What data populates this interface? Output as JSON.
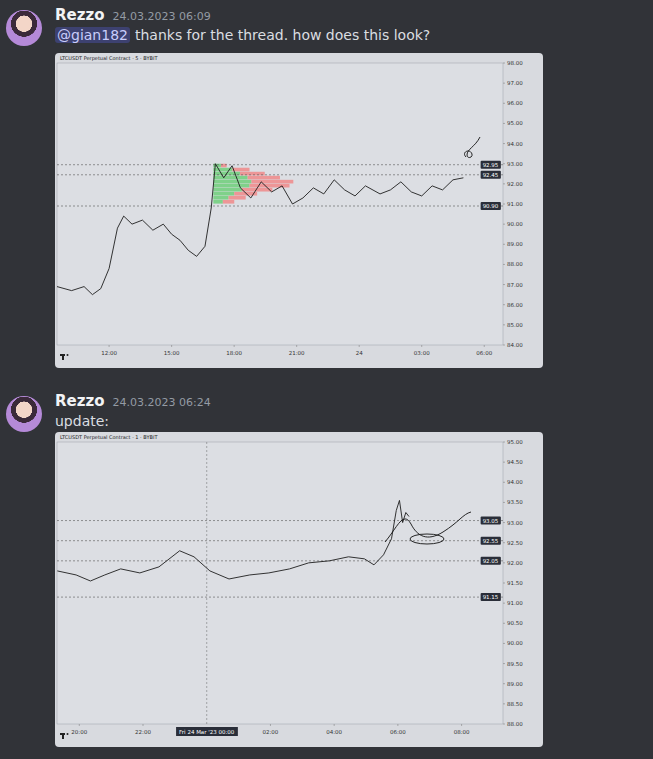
{
  "messages": [
    {
      "author": "Rezzo",
      "time": "24.03.2023 06:09",
      "mention": "@gian182",
      "text": "thanks for the thread. how does this look?"
    },
    {
      "author": "Rezzo",
      "time": "24.03.2023 06:24",
      "text": "update:"
    }
  ],
  "chart_data": [
    {
      "type": "line",
      "title": "LTCUSDT Perpetual Contract · 5 · BYBIT",
      "color": "#1e1e1e",
      "grid": false,
      "x": [
        9.5,
        10.2,
        10.8,
        11.2,
        11.6,
        12.0,
        12.4,
        12.7,
        13.1,
        13.6,
        14.1,
        14.6,
        15.0,
        15.4,
        15.8,
        16.2,
        16.6,
        16.9,
        17.1,
        17.5,
        17.9,
        18.3,
        18.8,
        19.3,
        19.8,
        20.3,
        20.8,
        21.3,
        21.8,
        22.3,
        22.8,
        23.3,
        23.8,
        24.3,
        25.0,
        25.5,
        26.0,
        26.5,
        27.0,
        27.5,
        28.0,
        28.5,
        29.0
      ],
      "values": [
        86.9,
        86.7,
        86.9,
        86.5,
        86.8,
        87.8,
        89.8,
        90.4,
        90.0,
        90.2,
        89.7,
        90.0,
        89.5,
        89.2,
        88.7,
        88.4,
        88.9,
        90.8,
        93.0,
        92.3,
        92.9,
        91.8,
        91.3,
        92.1,
        91.6,
        91.9,
        91.0,
        91.3,
        91.8,
        91.5,
        92.2,
        91.7,
        91.4,
        91.9,
        91.5,
        91.7,
        92.1,
        91.6,
        91.4,
        91.9,
        91.7,
        92.2,
        92.3
      ],
      "xlim": [
        9.5,
        30.9
      ],
      "xticks": [
        {
          "value": 12,
          "label": "12:00"
        },
        {
          "value": 15,
          "label": "15:00"
        },
        {
          "value": 18,
          "label": "18:00"
        },
        {
          "value": 21,
          "label": "21:00"
        },
        {
          "value": 24,
          "label": "24"
        },
        {
          "value": 27,
          "label": "03:00"
        },
        {
          "value": 30,
          "label": "06:00"
        }
      ],
      "ylim": [
        84,
        98
      ],
      "yticks": [
        {
          "value": 84,
          "label": "84.00"
        },
        {
          "value": 85,
          "label": "85.00"
        },
        {
          "value": 86,
          "label": "86.00"
        },
        {
          "value": 87,
          "label": "87.00"
        },
        {
          "value": 88,
          "label": "88.00"
        },
        {
          "value": 89,
          "label": "89.00"
        },
        {
          "value": 90,
          "label": "90.00"
        },
        {
          "value": 91,
          "label": "91.00"
        },
        {
          "value": 92,
          "label": "92.00"
        },
        {
          "value": 93,
          "label": "93.00"
        },
        {
          "value": 94,
          "label": "94.00"
        },
        {
          "value": 95,
          "label": "95.00"
        },
        {
          "value": 96,
          "label": "96.00"
        },
        {
          "value": 97,
          "label": "97.00"
        },
        {
          "value": 98,
          "label": "98.00"
        }
      ],
      "levels": [
        {
          "value": 92.95,
          "label": "92.95"
        },
        {
          "value": 92.45,
          "label": "92.45"
        },
        {
          "value": 90.9,
          "label": "90.90"
        }
      ],
      "volume_profile": {
        "start": 17.0,
        "prices": [
          92.9,
          92.7,
          92.5,
          92.3,
          92.1,
          91.9,
          91.7,
          91.5,
          91.3,
          91.1
        ],
        "buy": [
          4,
          10,
          14,
          18,
          20,
          19,
          15,
          11,
          8,
          5
        ],
        "sell": [
          3,
          9,
          13,
          17,
          22,
          21,
          16,
          12,
          9,
          6
        ]
      }
    },
    {
      "type": "line",
      "title": "LTCUSDT Perpetual Contract · 1 · BYBIT",
      "color": "#1e1e1e",
      "grid": false,
      "x": [
        19.31,
        19.9,
        20.35,
        20.8,
        21.3,
        21.9,
        22.5,
        23.15,
        23.6,
        24.1,
        24.7,
        25.35,
        25.95,
        26.6,
        27.2,
        27.85,
        28.45,
        28.95,
        29.25,
        29.55,
        29.8,
        29.95,
        30.05,
        30.15,
        30.25,
        30.35
      ],
      "values": [
        91.8,
        91.7,
        91.55,
        91.7,
        91.85,
        91.75,
        91.9,
        92.3,
        92.15,
        91.8,
        91.6,
        91.7,
        91.75,
        91.85,
        92.0,
        92.05,
        92.15,
        92.1,
        91.95,
        92.2,
        92.6,
        93.3,
        93.55,
        93.0,
        93.25,
        93.15
      ],
      "xlim": [
        19.3,
        33.3
      ],
      "xticks": [
        {
          "value": 20,
          "label": "20:00"
        },
        {
          "value": 22,
          "label": "22:00"
        },
        {
          "value": 26,
          "label": "02:00"
        },
        {
          "value": 28,
          "label": "04:00"
        },
        {
          "value": 30,
          "label": "06:00"
        },
        {
          "value": 32,
          "label": "08:00"
        }
      ],
      "ylim": [
        88,
        95
      ],
      "yticks": [
        {
          "value": 88,
          "label": "88.00"
        },
        {
          "value": 88.5,
          "label": "88.50"
        },
        {
          "value": 89,
          "label": "89.00"
        },
        {
          "value": 89.5,
          "label": "89.50"
        },
        {
          "value": 90,
          "label": "90.00"
        },
        {
          "value": 90.5,
          "label": "90.50"
        },
        {
          "value": 91,
          "label": "91.00"
        },
        {
          "value": 91.5,
          "label": "91.50"
        },
        {
          "value": 92,
          "label": "92.00"
        },
        {
          "value": 92.5,
          "label": "92.50"
        },
        {
          "value": 93,
          "label": "93.00"
        },
        {
          "value": 93.5,
          "label": "93.50"
        },
        {
          "value": 94,
          "label": "94.00"
        },
        {
          "value": 94.5,
          "label": "94.50"
        },
        {
          "value": 95,
          "label": "95.00"
        }
      ],
      "levels": [
        {
          "value": 93.05,
          "label": "93.05"
        },
        {
          "value": 92.55,
          "label": "92.55"
        },
        {
          "value": 92.05,
          "label": "92.05"
        },
        {
          "value": 91.15,
          "label": "91.15"
        }
      ],
      "crosshair": {
        "value": 24,
        "label": "Fri 24 Mar '23 00:00"
      }
    }
  ]
}
